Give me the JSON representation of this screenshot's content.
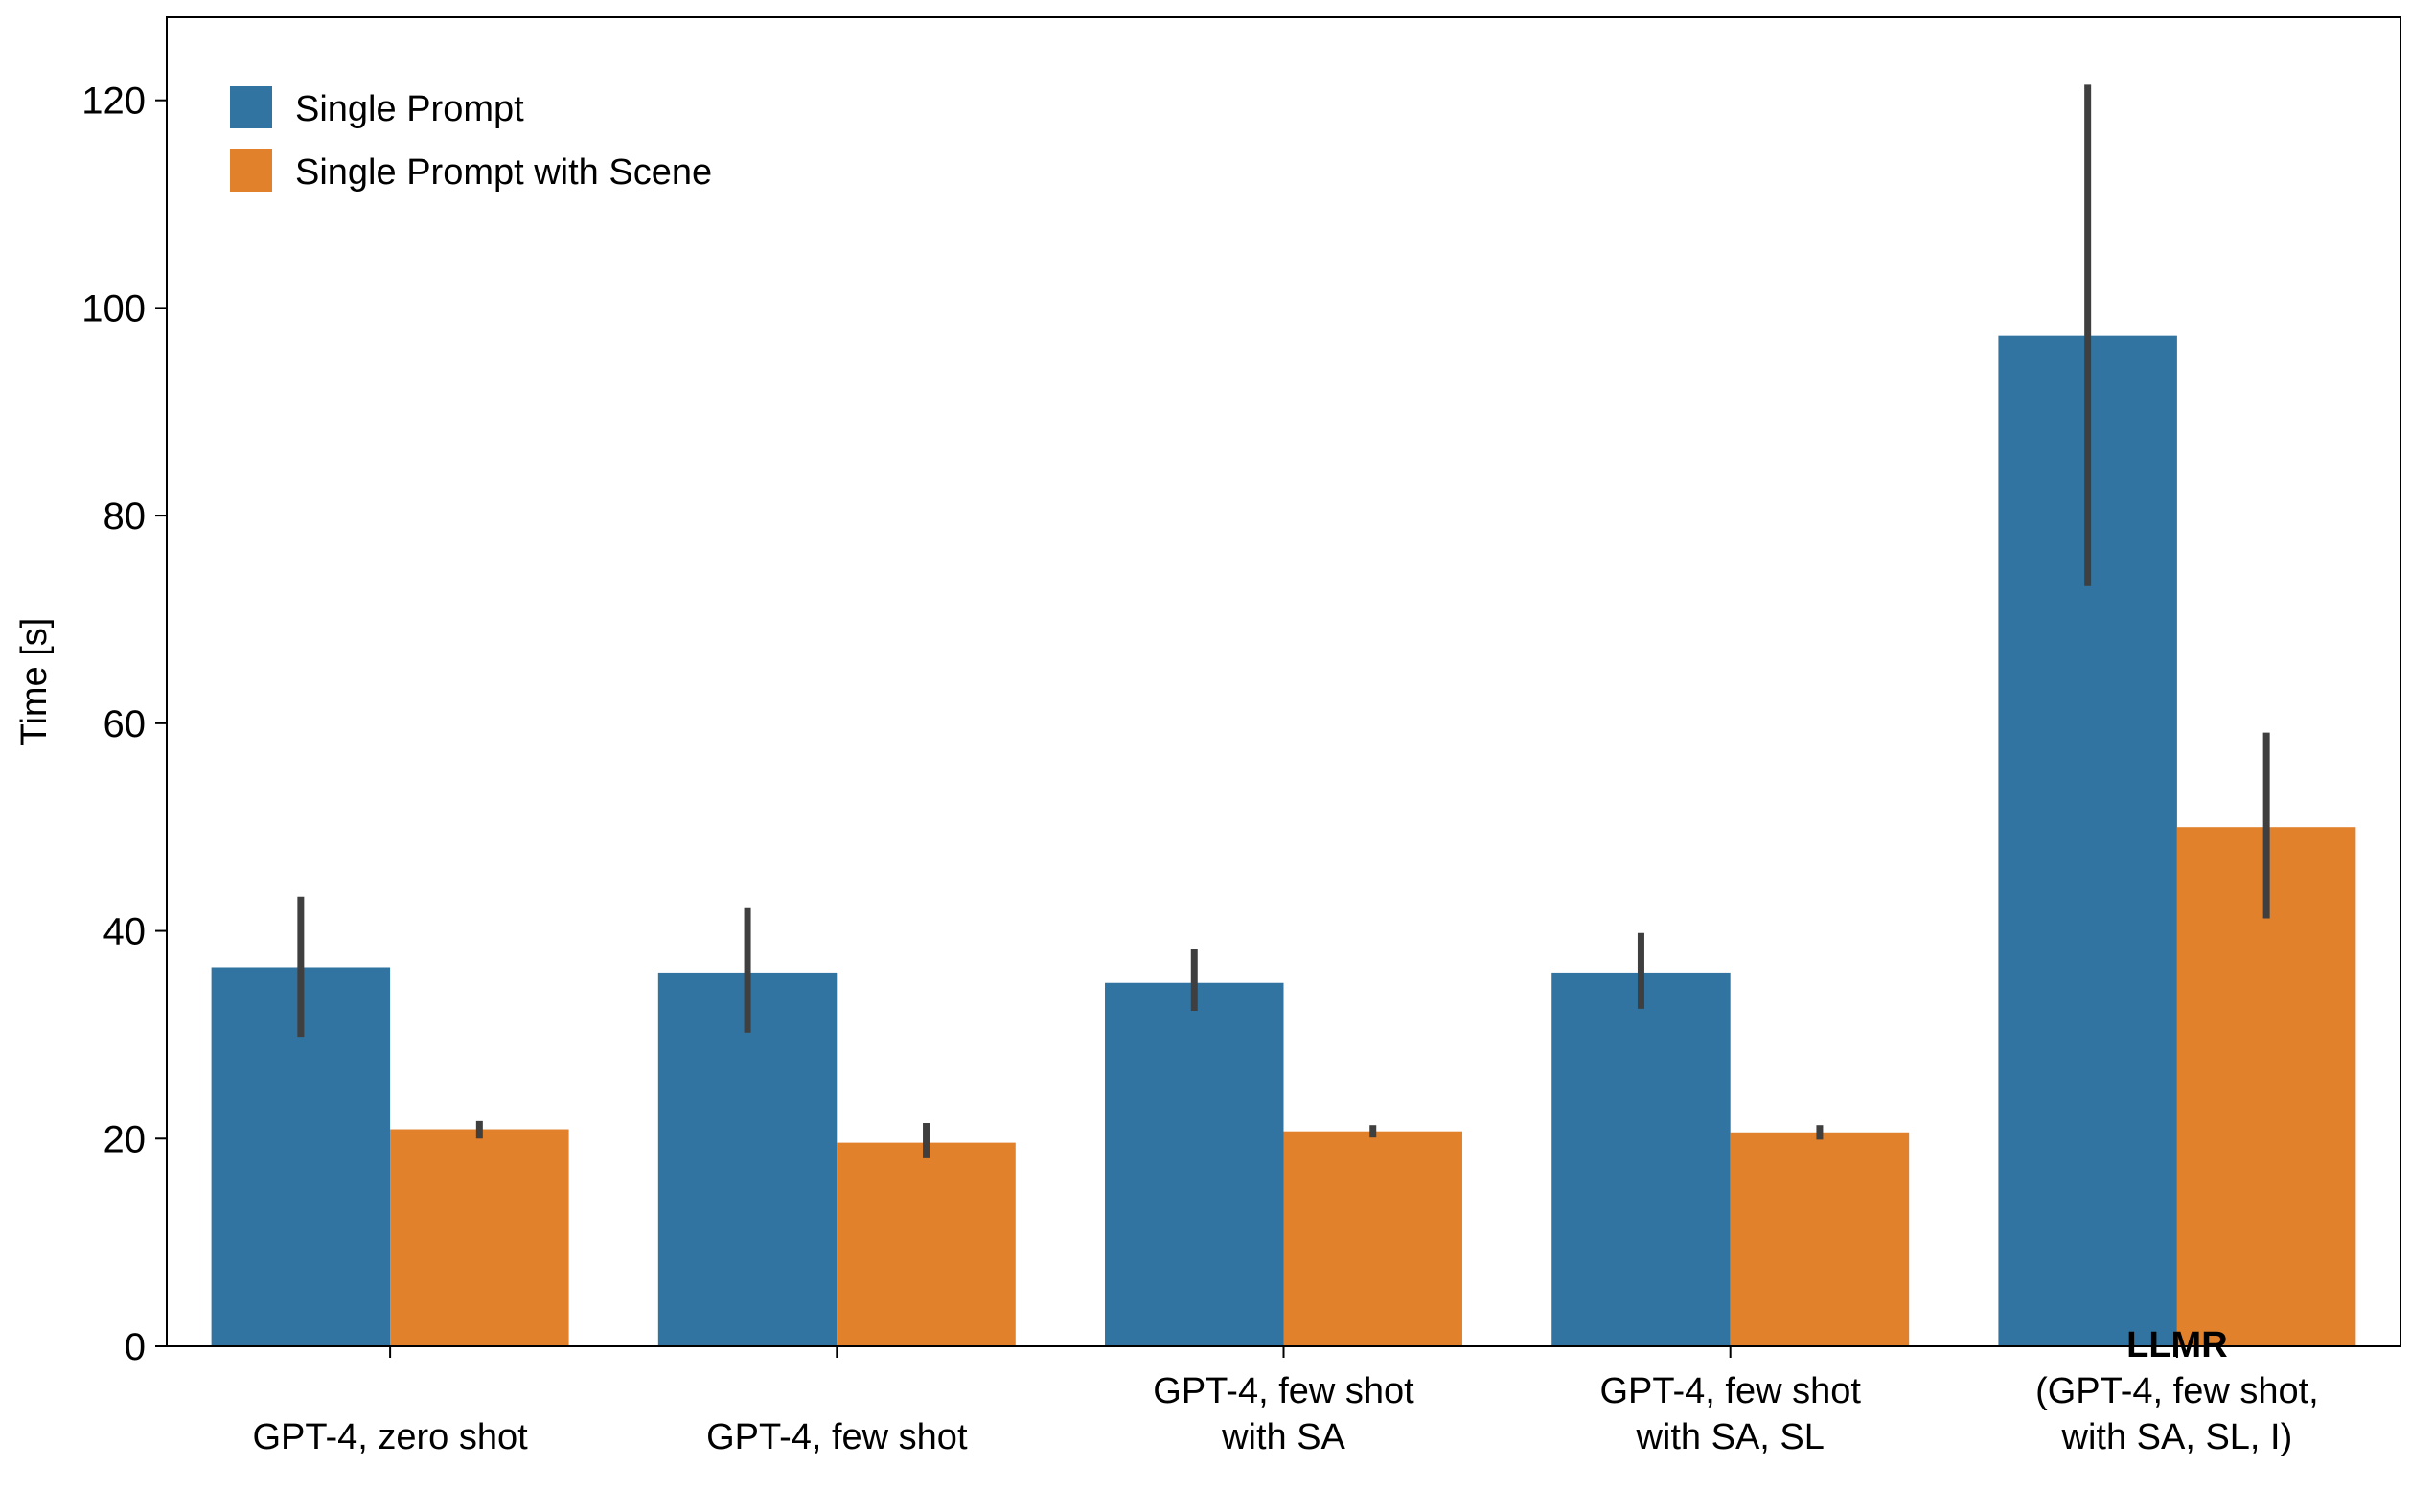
{
  "chart_data": {
    "type": "bar",
    "ylabel": "Time [s]",
    "xlabel": "",
    "ylim": [
      0,
      128
    ],
    "yticks": [
      0,
      20,
      40,
      60,
      80,
      100,
      120
    ],
    "grid": false,
    "legend_placement": "top-left",
    "categories": [
      {
        "lines": [
          "GPT-4, zero shot"
        ],
        "bold_lines": []
      },
      {
        "lines": [
          "GPT-4, few shot"
        ],
        "bold_lines": []
      },
      {
        "lines": [
          "GPT-4, few shot",
          "with SA"
        ],
        "bold_lines": []
      },
      {
        "lines": [
          "GPT-4, few shot",
          "with SA, SL"
        ],
        "bold_lines": []
      },
      {
        "lines": [
          "LLMR",
          "(GPT-4, few shot,",
          "with SA, SL, I)"
        ],
        "bold_lines": [
          0
        ]
      }
    ],
    "series": [
      {
        "name": "Single Prompt",
        "color": "#3274a1",
        "values": [
          36.5,
          36.0,
          35.0,
          36.0,
          97.3
        ],
        "error_low": [
          29.8,
          30.2,
          32.3,
          32.5,
          73.2
        ],
        "error_high": [
          43.3,
          42.2,
          38.3,
          39.8,
          121.5
        ]
      },
      {
        "name": "Single Prompt with Scene",
        "color": "#e1812c",
        "values": [
          20.9,
          19.6,
          20.7,
          20.6,
          50.0
        ],
        "error_low": [
          20.0,
          18.1,
          20.1,
          19.9,
          41.2
        ],
        "error_high": [
          21.7,
          21.5,
          21.3,
          21.3,
          59.1
        ]
      }
    ],
    "error_bar_color": "#3f3f3f"
  }
}
